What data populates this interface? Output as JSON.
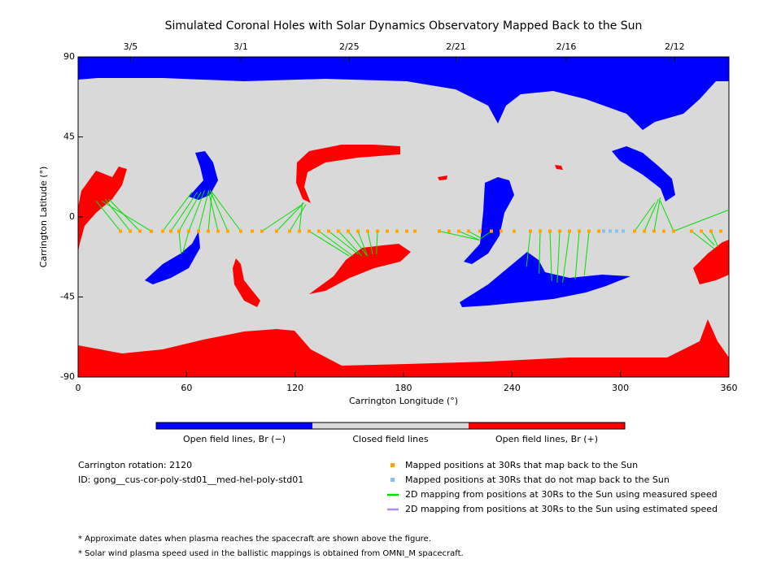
{
  "chart_data": {
    "type": "map",
    "title": "Simulated Coronal Holes with Solar Dynamics Observatory Mapped Back to the Sun",
    "xlabel": "Carrington Longitude (°)",
    "ylabel": "Carrington Latitude (°)",
    "xlim": [
      0,
      360
    ],
    "ylim": [
      -90,
      90
    ],
    "xticks": [
      0,
      60,
      120,
      180,
      240,
      300,
      360
    ],
    "yticks": [
      -90,
      -45,
      0,
      45,
      90
    ],
    "x2ticks": [
      {
        "value": 29,
        "label": "3/5"
      },
      {
        "value": 90,
        "label": "3/1"
      },
      {
        "value": 150,
        "label": "2/25"
      },
      {
        "value": 209,
        "label": "2/21"
      },
      {
        "value": 270,
        "label": "2/16"
      },
      {
        "value": 330,
        "label": "2/12"
      }
    ],
    "colorbar": {
      "labels": [
        "Open field lines, Br (−)",
        "Closed field lines",
        "Open field lines, Br (+)"
      ],
      "colors": [
        "#0000ff",
        "#d9d9d9",
        "#ff0000"
      ]
    },
    "series": [
      {
        "name": "Mapped positions at 30Rs that map back to the Sun",
        "color": "#ffa500",
        "lat": -8,
        "lon": [
          23.4,
          28.8,
          34.2,
          40.5,
          46.8,
          51.3,
          55.8,
          61.2,
          66.6,
          72,
          77.4,
          82.8,
          90,
          96.3,
          101.7,
          109.8,
          117,
          122.4,
          127.8,
          133.2,
          138.6,
          144,
          149.4,
          154.8,
          160.2,
          165.6,
          171,
          176.4,
          181.8,
          186.3,
          199.8,
          205.2,
          210.6,
          216,
          222.3,
          228.6,
          234,
          241.2,
          250.2,
          255.6,
          261,
          266.4,
          271.8,
          277.2,
          282.6,
          288,
          307.8,
          313.2,
          318.6,
          324,
          329.4,
          339.3,
          344.7,
          350.1,
          355.5
        ]
      },
      {
        "name": "Mapped positions at 30Rs that do not map back to the Sun",
        "color": "#87c0f0",
        "lat": -8,
        "lon": [
          290.7,
          294.3,
          297.9,
          301.5
        ]
      },
      {
        "name": "2D mapping from positions at 30Rs to the Sun using measured speed",
        "color": "#00e000",
        "from_lon": [
          23.4,
          28.8,
          34.2,
          40.5,
          46.8,
          51.3,
          55.8,
          61.2,
          66.6,
          72,
          77.4,
          82.8,
          90,
          55.8,
          61.2,
          101.7,
          109.8,
          117,
          122.4,
          127.8,
          133.2,
          138.6,
          144,
          149.4,
          154.8,
          160.2,
          165.6,
          199.8,
          210.6,
          216,
          228.6,
          250.2,
          255.6,
          261,
          266.4,
          271.8,
          277.2,
          282.6,
          307.8,
          313.2,
          318.6,
          329.4,
          339.3,
          344.7,
          350.1,
          329.4
        ],
        "to_lon": [
          10,
          15,
          17,
          13,
          63,
          66,
          68,
          70,
          72,
          74,
          72,
          73,
          74,
          57,
          58,
          124,
          125,
          126,
          124,
          150,
          152,
          155,
          157,
          160,
          160,
          163,
          165,
          222,
          222,
          223,
          223,
          248,
          255,
          262,
          265,
          268,
          275,
          280,
          319,
          321,
          322,
          322,
          352,
          352,
          354,
          360
        ],
        "to_lat": [
          9,
          10,
          10,
          9,
          14,
          14,
          14,
          15,
          14,
          14,
          15,
          15,
          14,
          -21,
          -20,
          7,
          8,
          7,
          8,
          -22,
          -22,
          -21,
          -22,
          -22,
          -22,
          -21,
          -21,
          -13,
          -13,
          -12,
          -12,
          -28,
          -32,
          -36,
          -37,
          -37,
          -35,
          -33,
          8,
          10,
          11,
          9,
          -18,
          -16,
          -17,
          4
        ]
      },
      {
        "name": "2D mapping from positions at 30Rs to the Sun using estimated speed",
        "color": "#b088f0"
      }
    ],
    "info": [
      "Carrington rotation: 2120",
      "ID: gong__cus-cor-poly-std01__med-hel-poly-std01"
    ],
    "notes": [
      "* Approximate dates when plasma reaches the spacecraft are shown above the figure.",
      "* Solar wind plasma speed used in the ballistic mappings is obtained from OMNI_M spacecraft."
    ]
  }
}
